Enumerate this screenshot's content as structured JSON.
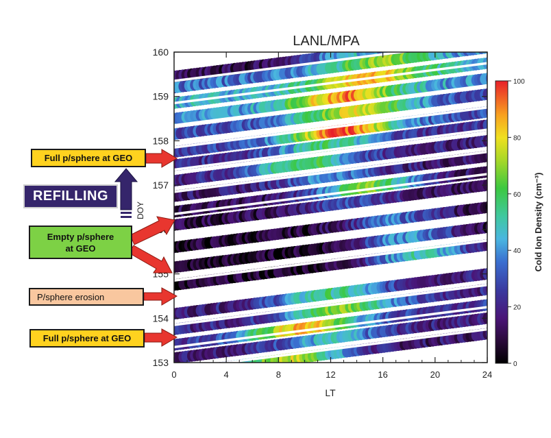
{
  "chart_data": {
    "type": "heatmap",
    "title": "LANL/MPA",
    "xlabel": "LT",
    "ylabel": "DOY",
    "xlim": [
      0,
      24
    ],
    "ylim": [
      153,
      160
    ],
    "x_ticks": [
      "0",
      "4",
      "8",
      "12",
      "16",
      "20",
      "24"
    ],
    "y_ticks": [
      "153",
      "154",
      "155",
      "156",
      "157",
      "158",
      "159",
      "160"
    ],
    "colorbar": {
      "label": "Cold Ion Density (cm⁻³)",
      "range": [
        0,
        100
      ],
      "ticks": [
        "0",
        "20",
        "40",
        "60",
        "80",
        "100"
      ],
      "colormap": "rainbow (black → purple → blue → cyan → green → yellow → red)"
    },
    "bands": [
      {
        "doy": 153.2,
        "peak_lt": 9,
        "peak_density": 75,
        "base_density": 15
      },
      {
        "doy": 153.55,
        "peak_lt": 12,
        "peak_density": 45,
        "base_density": 18
      },
      {
        "doy": 153.85,
        "peak_lt": 10,
        "peak_density": 85,
        "base_density": 25
      },
      {
        "doy": 154.2,
        "peak_lt": 13,
        "peak_density": 70,
        "base_density": 20
      },
      {
        "doy": 154.55,
        "peak_lt": 12,
        "peak_density": 55,
        "base_density": 18
      },
      {
        "doy": 155.2,
        "peak_lt": 19,
        "peak_density": 50,
        "base_density": 6
      },
      {
        "doy": 155.6,
        "peak_lt": 18,
        "peak_density": 40,
        "base_density": 5
      },
      {
        "doy": 156.05,
        "peak_lt": 17,
        "peak_density": 35,
        "base_density": 6
      },
      {
        "doy": 156.55,
        "peak_lt": 14,
        "peak_density": 30,
        "base_density": 10
      },
      {
        "doy": 156.85,
        "peak_lt": 15,
        "peak_density": 65,
        "base_density": 12
      },
      {
        "doy": 157.2,
        "peak_lt": 12,
        "peak_density": 40,
        "base_density": 15
      },
      {
        "doy": 157.55,
        "peak_lt": 10,
        "peak_density": 60,
        "base_density": 18
      },
      {
        "doy": 157.9,
        "peak_lt": 12,
        "peak_density": 55,
        "base_density": 22
      },
      {
        "doy": 158.2,
        "peak_lt": 13,
        "peak_density": 95,
        "base_density": 28
      },
      {
        "doy": 158.6,
        "peak_lt": 14,
        "peak_density": 80,
        "base_density": 30
      },
      {
        "doy": 158.95,
        "peak_lt": 13,
        "peak_density": 90,
        "base_density": 40
      },
      {
        "doy": 159.3,
        "peak_lt": 15,
        "peak_density": 85,
        "base_density": 45
      },
      {
        "doy": 159.65,
        "peak_lt": 16,
        "peak_density": 70,
        "base_density": 35
      },
      {
        "doy": 159.9,
        "peak_lt": 14,
        "peak_density": 45,
        "base_density": 10
      }
    ],
    "annotations": [
      {
        "text": "Full p/sphere at GEO",
        "points_to_doy": 157.8
      },
      {
        "text": "REFILLING",
        "arrow_direction": "up"
      },
      {
        "text": "Empty p/sphere at GEO",
        "points_to_doy": [
          156.95,
          155.25
        ]
      },
      {
        "text": "P/sphere erosion",
        "points_to_doy": 154.5
      },
      {
        "text": "Full p/sphere at GEO",
        "points_to_doy": 153.85
      }
    ]
  },
  "labels": {
    "full_top": "Full p/sphere at GEO",
    "refilling": "REFILLING",
    "empty_line1": "Empty p/sphere",
    "empty_line2": "at GEO",
    "erosion": "P/sphere erosion",
    "full_bottom": "Full p/sphere at GEO"
  },
  "colors": {
    "full_box": "#ffd21f",
    "empty_box": "#7dd145",
    "erosion_box": "#f9c79f",
    "refilling_box": "#35256b",
    "arrow_red": "#e8362f",
    "arrow_purple": "#35256b"
  }
}
